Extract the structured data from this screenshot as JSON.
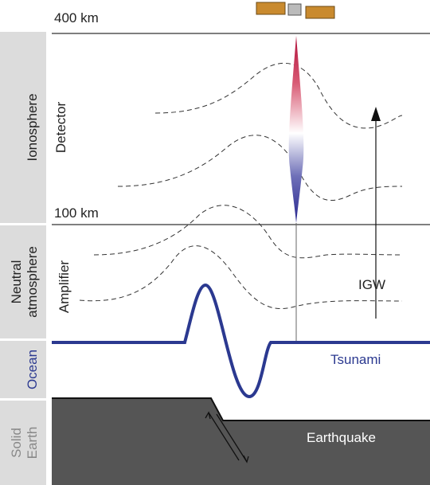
{
  "scale": {
    "top": "400 km",
    "bottom": "100 km"
  },
  "layers": {
    "ionosphere": "Ionosphere",
    "neutral_line1": "Neutral",
    "neutral_line2": "atmosphere",
    "ocean": "Ocean",
    "earth_line1": "Solid",
    "earth_line2": "Earth"
  },
  "roles": {
    "detector": "Detector",
    "amplifier": "Amplifier"
  },
  "labels": {
    "igw": "IGW",
    "tsunami": "Tsunami",
    "earthquake": "Earthquake"
  }
}
